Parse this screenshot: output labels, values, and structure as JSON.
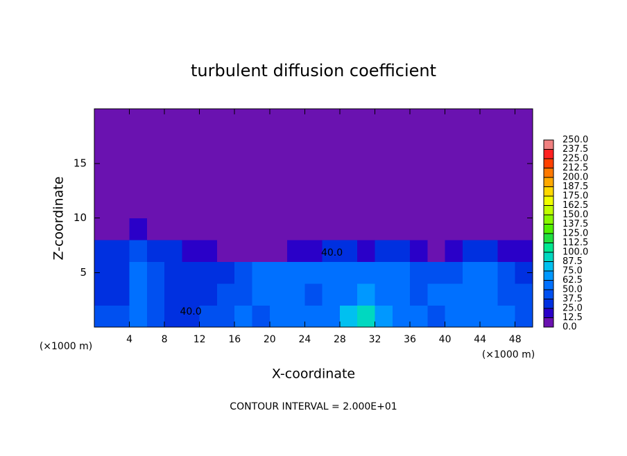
{
  "chart_data": {
    "type": "heatmap",
    "title": "turbulent diffusion coefficient",
    "x_label": "X-coordinate",
    "y_label": "Z-coordinate",
    "x_unit_label": "(×1000 m)",
    "footnote": "CONTOUR INTERVAL = 2.000E+01",
    "xlim": [
      0,
      50
    ],
    "ylim": [
      0,
      20
    ],
    "xticks": [
      4,
      8,
      12,
      16,
      20,
      24,
      28,
      32,
      36,
      40,
      44,
      48
    ],
    "yticks": [
      5,
      10,
      15
    ],
    "x_edges": [
      0,
      2,
      4,
      6,
      8,
      10,
      12,
      14,
      16,
      18,
      20,
      22,
      24,
      26,
      28,
      30,
      32,
      34,
      36,
      38,
      40,
      42,
      44,
      46,
      48,
      50
    ],
    "y_edges": [
      0,
      2,
      4,
      6,
      8,
      10,
      12,
      14,
      16,
      18,
      20
    ],
    "z": [
      [
        40,
        40,
        60,
        45,
        35,
        35,
        40,
        45,
        50,
        45,
        50,
        55,
        60,
        55,
        80,
        90,
        70,
        55,
        50,
        45,
        60,
        55,
        60,
        50,
        45
      ],
      [
        35,
        35,
        55,
        45,
        35,
        35,
        35,
        40,
        45,
        55,
        60,
        55,
        45,
        50,
        60,
        70,
        60,
        50,
        45,
        55,
        50,
        60,
        55,
        45,
        40
      ],
      [
        35,
        35,
        50,
        40,
        35,
        35,
        30,
        35,
        45,
        55,
        60,
        55,
        60,
        55,
        60,
        55,
        60,
        55,
        45,
        40,
        45,
        60,
        55,
        40,
        35
      ],
      [
        25,
        25,
        45,
        35,
        25,
        20,
        15,
        10,
        10,
        10,
        10,
        15,
        20,
        25,
        30,
        20,
        25,
        30,
        20,
        10,
        20,
        30,
        25,
        15,
        20
      ],
      [
        0,
        0,
        15,
        10,
        0,
        0,
        0,
        0,
        0,
        0,
        0,
        0,
        0,
        0,
        0,
        0,
        0,
        0,
        0,
        0,
        0,
        0,
        0,
        0,
        0
      ],
      [
        0,
        0,
        0,
        0,
        0,
        0,
        0,
        0,
        0,
        0,
        0,
        0,
        0,
        0,
        0,
        0,
        0,
        0,
        0,
        0,
        0,
        0,
        0,
        0,
        0
      ],
      [
        0,
        0,
        0,
        0,
        0,
        0,
        0,
        0,
        0,
        0,
        0,
        0,
        0,
        0,
        0,
        0,
        0,
        0,
        0,
        0,
        0,
        0,
        0,
        0,
        0
      ],
      [
        0,
        0,
        0,
        0,
        0,
        0,
        0,
        0,
        0,
        0,
        0,
        0,
        0,
        0,
        0,
        0,
        0,
        0,
        0,
        0,
        0,
        0,
        0,
        0,
        0
      ],
      [
        0,
        0,
        0,
        0,
        0,
        0,
        0,
        0,
        0,
        0,
        0,
        0,
        0,
        0,
        0,
        0,
        0,
        0,
        0,
        0,
        0,
        0,
        0,
        0,
        0
      ],
      [
        0,
        0,
        0,
        0,
        0,
        0,
        0,
        0,
        0,
        0,
        0,
        0,
        0,
        0,
        0,
        0,
        0,
        0,
        0,
        0,
        0,
        0,
        0,
        0,
        0
      ]
    ],
    "annotations": [
      {
        "text": "40.0",
        "x": 11,
        "y": 1.4
      },
      {
        "text": "40.0",
        "x": 27.1,
        "y": 6.8
      }
    ],
    "colorbar": {
      "levels": [
        {
          "value": 0,
          "label": "0.0"
        },
        12.5,
        {
          "value": 25,
          "label": "25.0"
        },
        37.5,
        {
          "value": 50,
          "label": "50.0"
        },
        62.5,
        {
          "value": 75,
          "label": "75.0"
        },
        87.5,
        {
          "value": 100,
          "label": "100.0"
        },
        112.5,
        {
          "value": 125,
          "label": "125.0"
        },
        137.5,
        {
          "value": 150,
          "label": "150.0"
        },
        162.5,
        {
          "value": 175,
          "label": "175.0"
        },
        187.5,
        {
          "value": 200,
          "label": "200.0"
        },
        212.5,
        {
          "value": 225,
          "label": "225.0"
        },
        237.5,
        {
          "value": 250,
          "label": "250.0"
        }
      ],
      "colors": [
        "#6a12b0",
        "#2a00c8",
        "#0030e0",
        "#0050f0",
        "#0070ff",
        "#0098ff",
        "#00c0f0",
        "#00d8c0",
        "#00e890",
        "#20e040",
        "#50f000",
        "#88f800",
        "#c0ff00",
        "#f0ff00",
        "#ffd800",
        "#ffa800",
        "#ff7800",
        "#ff4000",
        "#ff2020",
        "#f08080"
      ]
    }
  }
}
